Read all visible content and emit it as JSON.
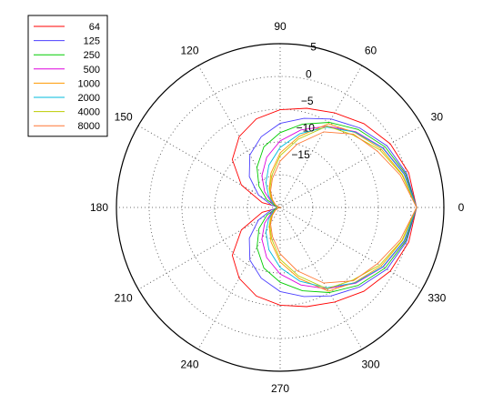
{
  "chart_data": {
    "type": "line",
    "subtype": "polar",
    "title": "",
    "angle_unit": "degrees",
    "angle_ticks": [
      "0",
      "30",
      "60",
      "90",
      "120",
      "150",
      "180",
      "210",
      "240",
      "270",
      "300",
      "330"
    ],
    "radial_unit": "dB",
    "radial_range": [
      -25,
      5
    ],
    "radial_ticks": [
      "5",
      "0",
      "-5",
      "-10",
      "-15"
    ],
    "radial_tick_values": [
      5,
      0,
      -5,
      -10,
      -15
    ],
    "grid": true,
    "legend_position": "top-left",
    "angles": [
      0,
      15,
      30,
      45,
      60,
      75,
      90,
      105,
      120,
      135,
      150,
      165,
      180,
      195,
      210,
      225,
      240,
      255,
      270,
      285,
      300,
      315,
      330,
      345
    ],
    "series": [
      {
        "name": "64",
        "color": "#ff0000",
        "values": [
          0.0,
          -0.6,
          -1.7,
          -3.3,
          -5.0,
          -6.2,
          -7.1,
          -8.2,
          -10.0,
          -12.6,
          -16.8,
          -21.6,
          -25.0,
          -21.6,
          -16.8,
          -12.6,
          -10.0,
          -8.2,
          -7.1,
          -6.2,
          -5.0,
          -3.3,
          -1.7,
          -0.6
        ]
      },
      {
        "name": "125",
        "color": "#4b3fff",
        "values": [
          0.0,
          -1.0,
          -2.4,
          -4.4,
          -6.3,
          -8.1,
          -9.6,
          -11.6,
          -13.9,
          -17.0,
          -20.4,
          -23.4,
          -25.0,
          -23.4,
          -20.4,
          -17.0,
          -13.9,
          -11.6,
          -9.6,
          -8.1,
          -6.3,
          -4.4,
          -2.4,
          -1.0
        ]
      },
      {
        "name": "250",
        "color": "#00cc00",
        "values": [
          0.0,
          -1.2,
          -2.8,
          -4.8,
          -7.0,
          -9.2,
          -11.3,
          -13.5,
          -16.5,
          -19.5,
          -22.2,
          -24.2,
          -25.0,
          -24.2,
          -22.2,
          -19.5,
          -16.5,
          -13.5,
          -11.3,
          -9.2,
          -7.0,
          -4.8,
          -2.8,
          -1.2
        ]
      },
      {
        "name": "500",
        "color": "#dd00dd",
        "values": [
          0.0,
          -1.4,
          -3.2,
          -5.4,
          -7.8,
          -10.3,
          -12.8,
          -15.5,
          -18.3,
          -21.0,
          -23.2,
          -24.5,
          -25.0,
          -24.5,
          -23.2,
          -21.0,
          -18.3,
          -15.5,
          -12.8,
          -10.3,
          -7.8,
          -5.4,
          -3.2,
          -1.4
        ]
      },
      {
        "name": "1000",
        "color": "#ff9900",
        "values": [
          0.0,
          -1.8,
          -3.6,
          -5.6,
          -7.3,
          -11.5,
          -15.0,
          -18.5,
          -21.0,
          -22.5,
          -23.6,
          -24.4,
          -25.0,
          -24.4,
          -23.6,
          -22.5,
          -21.0,
          -18.5,
          -15.0,
          -11.5,
          -7.3,
          -5.6,
          -3.6,
          -1.8
        ]
      },
      {
        "name": "2000",
        "color": "#00bbdd",
        "values": [
          0.0,
          -1.5,
          -3.3,
          -5.5,
          -8.0,
          -11.0,
          -14.0,
          -17.0,
          -19.8,
          -22.0,
          -23.5,
          -24.4,
          -25.0,
          -24.4,
          -23.5,
          -22.0,
          -19.8,
          -17.0,
          -14.0,
          -11.0,
          -8.0,
          -5.5,
          -3.3,
          -1.5
        ]
      },
      {
        "name": "4000",
        "color": "#bbcc00",
        "values": [
          0.0,
          -1.9,
          -3.9,
          -6.2,
          -7.8,
          -12.0,
          -15.5,
          -19.0,
          -21.2,
          -22.8,
          -23.8,
          -24.5,
          -25.0,
          -24.5,
          -23.8,
          -22.8,
          -21.2,
          -19.0,
          -15.5,
          -12.0,
          -7.8,
          -6.2,
          -3.9,
          -1.9
        ]
      },
      {
        "name": "8000",
        "color": "#ff7733",
        "values": [
          0.0,
          -2.2,
          -4.4,
          -6.0,
          -9.0,
          -13.0,
          -16.5,
          -19.5,
          -21.5,
          -23.0,
          -24.0,
          -24.6,
          -25.0,
          -24.6,
          -24.0,
          -23.0,
          -21.5,
          -19.5,
          -16.5,
          -13.0,
          -9.0,
          -6.0,
          -4.4,
          -2.2
        ]
      }
    ]
  }
}
